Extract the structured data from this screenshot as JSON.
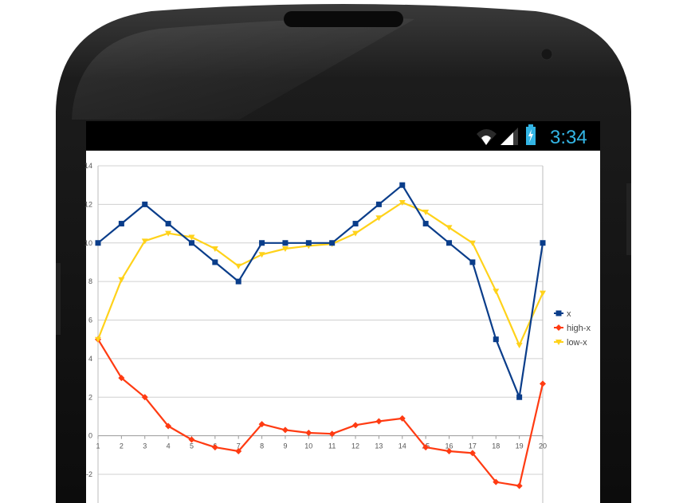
{
  "status_bar": {
    "time": "3:34",
    "wifi_icon": "wifi-icon",
    "signal_icon": "signal-icon",
    "battery_icon": "battery-charging-icon"
  },
  "colors": {
    "x": "#0a3d8a",
    "high_x": "#ff3b12",
    "low_x": "#ffd21a",
    "status_text": "#33b5e5"
  },
  "chart_data": {
    "type": "line",
    "x": [
      1,
      2,
      3,
      4,
      5,
      6,
      7,
      8,
      9,
      10,
      11,
      12,
      13,
      14,
      15,
      16,
      17,
      18,
      19,
      20
    ],
    "ylim": [
      -2,
      14
    ],
    "yticks": [
      -2,
      0,
      2,
      4,
      6,
      8,
      10,
      12,
      14
    ],
    "grid": true,
    "legend_position": "right",
    "series": [
      {
        "name": "x",
        "marker": "square",
        "color": "#0a3d8a",
        "values": [
          10,
          11,
          12,
          11,
          10,
          9,
          8,
          10,
          10,
          10,
          10,
          11,
          12,
          13,
          11,
          10,
          9,
          5,
          2,
          10
        ]
      },
      {
        "name": "high-x",
        "marker": "diamond",
        "color": "#ff3b12",
        "values": [
          5,
          3,
          2,
          0.5,
          -0.2,
          -0.6,
          -0.8,
          0.6,
          0.3,
          0.15,
          0.1,
          0.55,
          0.75,
          0.9,
          -0.6,
          -0.8,
          -0.9,
          -2.4,
          -2.6,
          2.7
        ]
      },
      {
        "name": "low-x",
        "marker": "triangle",
        "color": "#ffd21a",
        "values": [
          5,
          8.1,
          10.1,
          10.5,
          10.3,
          9.7,
          8.8,
          9.4,
          9.7,
          9.85,
          9.95,
          10.5,
          11.3,
          12.1,
          11.6,
          10.8,
          10,
          7.5,
          4.7,
          7.4
        ]
      }
    ]
  }
}
